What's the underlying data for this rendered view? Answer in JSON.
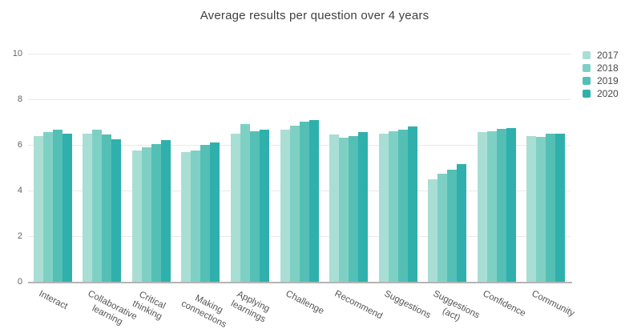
{
  "chart_data": {
    "type": "bar",
    "title": "Average results per question over 4 years",
    "xlabel": "",
    "ylabel": "",
    "ylim": [
      0,
      10
    ],
    "yticks": [
      0,
      2,
      4,
      6,
      8,
      10
    ],
    "grid": true,
    "legend_position": "right",
    "categories": [
      "Interact",
      "Collaborative\nlearning",
      "Critical\nthinking",
      "Making\nconnections",
      "Applying\nlearnings",
      "Challenge",
      "Recommend",
      "Suggestions",
      "Suggestions\n(act)",
      "Confidence",
      "Community"
    ],
    "series": [
      {
        "name": "2017",
        "color": "#a9ded5",
        "values": [
          6.4,
          6.5,
          5.75,
          5.7,
          6.5,
          6.65,
          6.45,
          6.5,
          4.5,
          6.55,
          6.4
        ]
      },
      {
        "name": "2018",
        "color": "#7fd0c4",
        "values": [
          6.55,
          6.65,
          5.9,
          5.75,
          6.9,
          6.85,
          6.3,
          6.6,
          4.75,
          6.6,
          6.35
        ]
      },
      {
        "name": "2019",
        "color": "#54bfb5",
        "values": [
          6.65,
          6.45,
          6.05,
          6.0,
          6.6,
          7.0,
          6.4,
          6.65,
          4.9,
          6.7,
          6.5
        ]
      },
      {
        "name": "2020",
        "color": "#30b0ac",
        "values": [
          6.5,
          6.25,
          6.2,
          6.1,
          6.65,
          7.1,
          6.55,
          6.8,
          5.15,
          6.75,
          6.5
        ]
      }
    ],
    "colors": {
      "gridline": "#e9e9e9",
      "axis_line": "#b4b4b4",
      "tick_text": "#636363",
      "category_text": "#555555",
      "title_text": "#3f3f3f",
      "legend_text": "#474747"
    }
  }
}
